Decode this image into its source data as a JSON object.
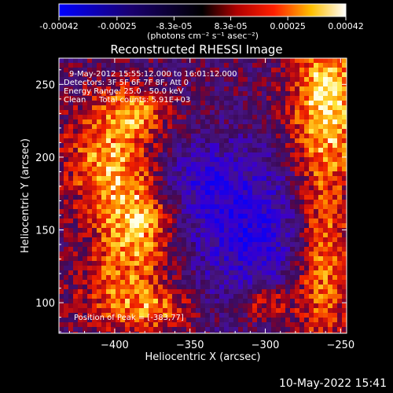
{
  "colorbar": {
    "ticks": [
      "-0.00042",
      "-0.00025",
      "-8.3e-05",
      "8.3e-05",
      "0.00025",
      "0.00042"
    ],
    "tick_values": [
      -0.00042,
      -0.00025,
      -8.3e-05,
      8.3e-05,
      0.00025,
      0.00042
    ],
    "range": [
      -0.00042,
      0.00042
    ],
    "unit_label": "(photons cm⁻² s⁻¹ asec⁻²)"
  },
  "chart_data": {
    "type": "heatmap",
    "title": "Reconstructed RHESSI Image",
    "xlabel": "Heliocentric X (arcsec)",
    "ylabel": "Heliocentric Y (arcsec)",
    "xlim": [
      -437,
      -246
    ],
    "ylim": [
      79,
      268
    ],
    "xticks": [
      -400,
      -350,
      -300,
      -250
    ],
    "yticks": [
      100,
      150,
      200,
      250
    ],
    "xtick_labels": [
      "−400",
      "−350",
      "−300",
      "−250"
    ],
    "ytick_labels": [
      "100",
      "150",
      "200",
      "250"
    ],
    "grid": false,
    "colormap": [
      "#0000ff",
      "#000000",
      "#ff0000",
      "#ffff00",
      "#ffffff"
    ],
    "annotations": {
      "time": "9-May-2012 15:55:12.000 to 16:01:12.000",
      "detectors": "Detectors: 3F 5F 6F 7F 8F, Att 0",
      "energy": "Energy Range: 25.0 - 50.0 keV",
      "method": "Clean",
      "counts": "Total counts: 5.91E+03",
      "peak": "Position of Peak = [-383,77]"
    },
    "peak_position": [
      -383,
      77
    ]
  },
  "footer": {
    "date": "10-May-2022 15:41"
  }
}
